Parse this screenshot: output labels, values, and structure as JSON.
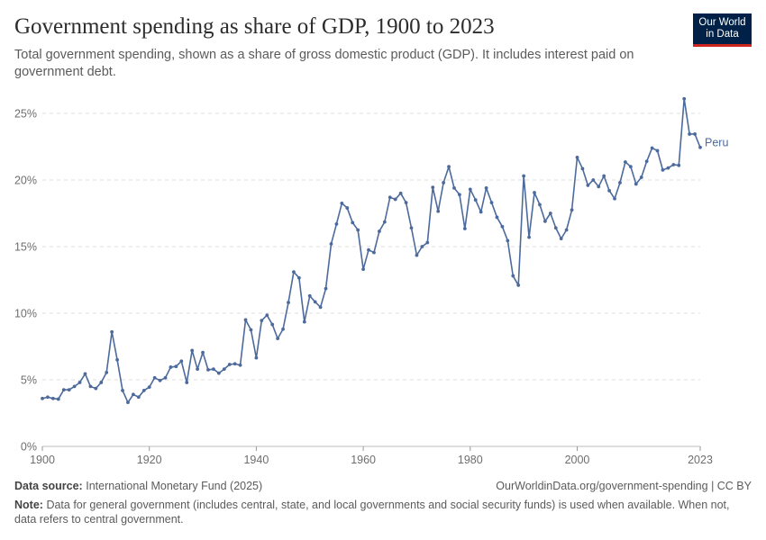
{
  "header": {
    "title": "Government spending as share of GDP, 1900 to 2023",
    "subtitle": "Total government spending, shown as a share of gross domestic product (GDP). It includes interest paid on government debt.",
    "logo_line1": "Our World",
    "logo_line2": "in Data"
  },
  "footer": {
    "source_label": "Data source:",
    "source_text": "International Monetary Fund (2025)",
    "url_text": "OurWorldinData.org/government-spending | CC BY",
    "note_label": "Note:",
    "note_text": "Data for general government (includes central, state, and local governments and social security funds) is used when available. When not, data refers to central government."
  },
  "colors": {
    "series": "#4c6a9c",
    "grid": "#dddddd",
    "axis_text": "#6e6e6e",
    "logo_bg": "#002147",
    "logo_accent": "#ce261e"
  },
  "chart_data": {
    "type": "line",
    "xlabel": "",
    "ylabel": "",
    "x_ticks": [
      1900,
      1920,
      1940,
      1960,
      1980,
      2000,
      2023
    ],
    "y_ticks": [
      0,
      5,
      10,
      15,
      20,
      25
    ],
    "y_tick_labels": [
      "0%",
      "5%",
      "10%",
      "15%",
      "20%",
      "25%"
    ],
    "xlim": [
      1900,
      2023
    ],
    "ylim": [
      0,
      25
    ],
    "grid": "horizontal dashed",
    "series": [
      {
        "name": "Peru",
        "color": "#4c6a9c",
        "points": [
          [
            1900,
            3.6
          ],
          [
            1901,
            3.7
          ],
          [
            1902,
            3.6
          ],
          [
            1903,
            3.55
          ],
          [
            1904,
            4.25
          ],
          [
            1905,
            4.25
          ],
          [
            1906,
            4.5
          ],
          [
            1907,
            4.8
          ],
          [
            1908,
            5.45
          ],
          [
            1909,
            4.5
          ],
          [
            1910,
            4.35
          ],
          [
            1911,
            4.8
          ],
          [
            1912,
            5.55
          ],
          [
            1913,
            8.6
          ],
          [
            1914,
            6.5
          ],
          [
            1915,
            4.2
          ],
          [
            1916,
            3.3
          ],
          [
            1917,
            3.9
          ],
          [
            1918,
            3.7
          ],
          [
            1919,
            4.2
          ],
          [
            1920,
            4.45
          ],
          [
            1921,
            5.15
          ],
          [
            1922,
            4.95
          ],
          [
            1923,
            5.15
          ],
          [
            1924,
            5.95
          ],
          [
            1925,
            6.0
          ],
          [
            1926,
            6.4
          ],
          [
            1927,
            4.8
          ],
          [
            1928,
            7.2
          ],
          [
            1929,
            5.8
          ],
          [
            1930,
            7.05
          ],
          [
            1931,
            5.75
          ],
          [
            1932,
            5.8
          ],
          [
            1933,
            5.5
          ],
          [
            1934,
            5.8
          ],
          [
            1935,
            6.15
          ],
          [
            1936,
            6.2
          ],
          [
            1937,
            6.1
          ],
          [
            1938,
            9.5
          ],
          [
            1939,
            8.75
          ],
          [
            1940,
            6.65
          ],
          [
            1941,
            9.45
          ],
          [
            1942,
            9.85
          ],
          [
            1943,
            9.15
          ],
          [
            1944,
            8.1
          ],
          [
            1945,
            8.8
          ],
          [
            1946,
            10.8
          ],
          [
            1947,
            13.1
          ],
          [
            1948,
            12.65
          ],
          [
            1949,
            9.35
          ],
          [
            1950,
            11.3
          ],
          [
            1951,
            10.85
          ],
          [
            1952,
            10.45
          ],
          [
            1953,
            11.85
          ],
          [
            1954,
            15.2
          ],
          [
            1955,
            16.7
          ],
          [
            1956,
            18.25
          ],
          [
            1957,
            17.9
          ],
          [
            1958,
            16.8
          ],
          [
            1959,
            16.25
          ],
          [
            1960,
            13.3
          ],
          [
            1961,
            14.75
          ],
          [
            1962,
            14.55
          ],
          [
            1963,
            16.15
          ],
          [
            1964,
            16.85
          ],
          [
            1965,
            18.7
          ],
          [
            1966,
            18.55
          ],
          [
            1967,
            19.0
          ],
          [
            1968,
            18.3
          ],
          [
            1969,
            16.4
          ],
          [
            1970,
            14.35
          ],
          [
            1971,
            15.0
          ],
          [
            1972,
            15.3
          ],
          [
            1973,
            19.45
          ],
          [
            1974,
            17.65
          ],
          [
            1975,
            19.8
          ],
          [
            1976,
            21.0
          ],
          [
            1977,
            19.4
          ],
          [
            1978,
            18.9
          ],
          [
            1979,
            16.35
          ],
          [
            1980,
            19.3
          ],
          [
            1981,
            18.5
          ],
          [
            1982,
            17.6
          ],
          [
            1983,
            19.4
          ],
          [
            1984,
            18.3
          ],
          [
            1985,
            17.2
          ],
          [
            1986,
            16.5
          ],
          [
            1987,
            15.45
          ],
          [
            1988,
            12.8
          ],
          [
            1989,
            12.1
          ],
          [
            1990,
            20.3
          ],
          [
            1991,
            15.7
          ],
          [
            1992,
            19.05
          ],
          [
            1993,
            18.15
          ],
          [
            1994,
            16.9
          ],
          [
            1995,
            17.5
          ],
          [
            1996,
            16.4
          ],
          [
            1997,
            15.6
          ],
          [
            1998,
            16.25
          ],
          [
            1999,
            17.75
          ],
          [
            2000,
            21.7
          ],
          [
            2001,
            20.85
          ],
          [
            2002,
            19.6
          ],
          [
            2003,
            20.0
          ],
          [
            2004,
            19.5
          ],
          [
            2005,
            20.3
          ],
          [
            2006,
            19.2
          ],
          [
            2007,
            18.6
          ],
          [
            2008,
            19.8
          ],
          [
            2009,
            21.35
          ],
          [
            2010,
            21.0
          ],
          [
            2011,
            19.7
          ],
          [
            2012,
            20.2
          ],
          [
            2013,
            21.4
          ],
          [
            2014,
            22.4
          ],
          [
            2015,
            22.2
          ],
          [
            2016,
            20.75
          ],
          [
            2017,
            20.9
          ],
          [
            2018,
            21.15
          ],
          [
            2019,
            21.1
          ],
          [
            2020,
            26.1
          ],
          [
            2021,
            23.45
          ],
          [
            2022,
            23.45
          ],
          [
            2023,
            22.45
          ]
        ]
      }
    ]
  }
}
